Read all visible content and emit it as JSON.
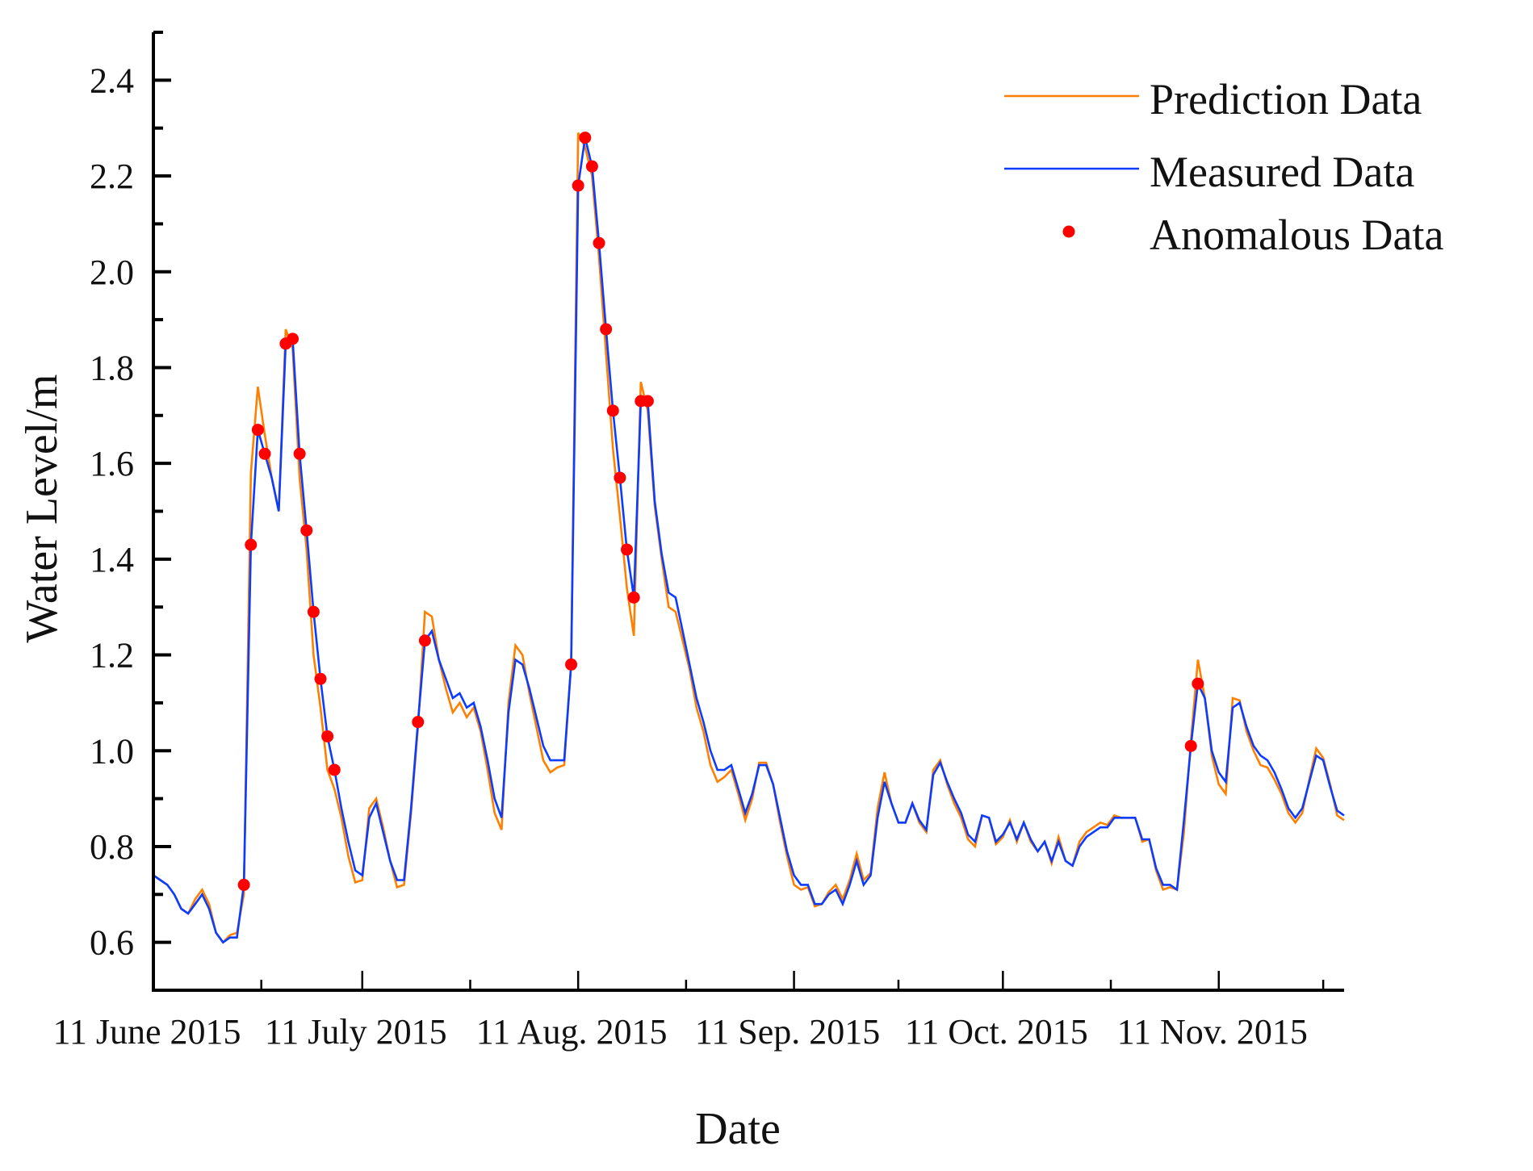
{
  "chart_data": {
    "type": "line",
    "title": "",
    "xlabel": "Date",
    "ylabel": "Water Level/m",
    "xlim_days": [
      0,
      171
    ],
    "ylim": [
      0.5,
      2.5
    ],
    "grid": false,
    "legend_placement": "top-right",
    "x_start_date": "11 June 2015",
    "x_ticks": [
      {
        "day": 0,
        "label": "11 June 2015"
      },
      {
        "day": 30,
        "label": "11 July 2015"
      },
      {
        "day": 61,
        "label": "11 Aug. 2015"
      },
      {
        "day": 92,
        "label": "11 Sep. 2015"
      },
      {
        "day": 122,
        "label": "11 Oct. 2015"
      },
      {
        "day": 153,
        "label": "11 Nov. 2015"
      }
    ],
    "x_minor_tick_days": [
      15.5,
      45.5,
      76.5,
      107,
      137.5,
      168
    ],
    "y_ticks": [
      {
        "value": 0.6,
        "label": "0.6"
      },
      {
        "value": 0.8,
        "label": "0.8"
      },
      {
        "value": 1.0,
        "label": "1.0"
      },
      {
        "value": 1.2,
        "label": "1.2"
      },
      {
        "value": 1.4,
        "label": "1.4"
      },
      {
        "value": 1.6,
        "label": "1.6"
      },
      {
        "value": 1.8,
        "label": "1.8"
      },
      {
        "value": 2.0,
        "label": "2.0"
      },
      {
        "value": 2.2,
        "label": "2.2"
      },
      {
        "value": 2.4,
        "label": "2.4"
      }
    ],
    "y_minor_ticks": [
      0.5,
      0.7,
      0.9,
      1.1,
      1.3,
      1.5,
      1.7,
      1.9,
      2.1,
      2.3,
      2.5
    ],
    "series": [
      {
        "name": "Prediction Data",
        "color": "#ff8000",
        "kind": "line",
        "values": [
          0.74,
          0.73,
          0.72,
          0.7,
          0.67,
          0.66,
          0.69,
          0.71,
          0.68,
          0.62,
          0.6,
          0.615,
          0.62,
          0.7,
          1.58,
          1.76,
          1.66,
          1.57,
          1.5,
          1.88,
          1.84,
          1.57,
          1.42,
          1.2,
          1.09,
          0.96,
          0.92,
          0.86,
          0.78,
          0.725,
          0.73,
          0.88,
          0.9,
          0.84,
          0.77,
          0.715,
          0.72,
          0.87,
          1.05,
          1.29,
          1.28,
          1.19,
          1.13,
          1.08,
          1.1,
          1.07,
          1.09,
          1.04,
          0.96,
          0.87,
          0.835,
          1.1,
          1.22,
          1.2,
          1.12,
          1.05,
          0.98,
          0.955,
          0.965,
          0.97,
          1.18,
          2.29,
          2.26,
          2.2,
          2.03,
          1.83,
          1.63,
          1.49,
          1.34,
          1.24,
          1.77,
          1.71,
          1.51,
          1.4,
          1.3,
          1.29,
          1.23,
          1.17,
          1.09,
          1.04,
          0.97,
          0.935,
          0.945,
          0.96,
          0.91,
          0.855,
          0.9,
          0.975,
          0.975,
          0.93,
          0.85,
          0.78,
          0.72,
          0.71,
          0.715,
          0.675,
          0.68,
          0.705,
          0.72,
          0.69,
          0.73,
          0.785,
          0.73,
          0.745,
          0.88,
          0.955,
          0.89,
          0.85,
          0.85,
          0.89,
          0.85,
          0.83,
          0.96,
          0.98,
          0.93,
          0.89,
          0.86,
          0.815,
          0.8,
          0.865,
          0.86,
          0.805,
          0.82,
          0.855,
          0.81,
          0.85,
          0.81,
          0.79,
          0.81,
          0.765,
          0.82,
          0.77,
          0.76,
          0.81,
          0.83,
          0.84,
          0.85,
          0.845,
          0.865,
          0.86,
          0.86,
          0.86,
          0.81,
          0.815,
          0.75,
          0.71,
          0.715,
          0.71,
          0.83,
          1.02,
          1.19,
          1.11,
          0.99,
          0.93,
          0.91,
          1.11,
          1.105,
          1.04,
          1.0,
          0.97,
          0.965,
          0.94,
          0.91,
          0.87,
          0.85,
          0.87,
          0.94,
          1.005,
          0.985,
          0.93,
          0.865,
          0.855
        ]
      },
      {
        "name": "Measured Data",
        "color": "#0b3cff",
        "kind": "line",
        "values": [
          0.74,
          0.73,
          0.72,
          0.7,
          0.67,
          0.66,
          0.68,
          0.7,
          0.67,
          0.62,
          0.6,
          0.61,
          0.61,
          0.72,
          1.43,
          1.67,
          1.62,
          1.57,
          1.5,
          1.85,
          1.86,
          1.62,
          1.46,
          1.29,
          1.15,
          1.03,
          0.96,
          0.88,
          0.81,
          0.75,
          0.74,
          0.86,
          0.89,
          0.83,
          0.77,
          0.73,
          0.73,
          0.88,
          1.06,
          1.23,
          1.25,
          1.19,
          1.15,
          1.11,
          1.12,
          1.09,
          1.1,
          1.05,
          0.98,
          0.9,
          0.86,
          1.08,
          1.19,
          1.18,
          1.13,
          1.07,
          1.01,
          0.98,
          0.98,
          0.98,
          1.18,
          2.18,
          2.28,
          2.22,
          2.06,
          1.88,
          1.71,
          1.57,
          1.42,
          1.32,
          1.73,
          1.73,
          1.52,
          1.41,
          1.33,
          1.32,
          1.25,
          1.18,
          1.11,
          1.06,
          1.0,
          0.96,
          0.96,
          0.97,
          0.92,
          0.87,
          0.91,
          0.97,
          0.97,
          0.93,
          0.86,
          0.79,
          0.74,
          0.72,
          0.72,
          0.68,
          0.68,
          0.7,
          0.71,
          0.68,
          0.72,
          0.77,
          0.72,
          0.74,
          0.86,
          0.935,
          0.89,
          0.85,
          0.85,
          0.89,
          0.855,
          0.835,
          0.95,
          0.975,
          0.935,
          0.9,
          0.87,
          0.825,
          0.81,
          0.865,
          0.86,
          0.81,
          0.825,
          0.85,
          0.815,
          0.85,
          0.815,
          0.79,
          0.81,
          0.77,
          0.81,
          0.77,
          0.76,
          0.8,
          0.82,
          0.83,
          0.84,
          0.84,
          0.86,
          0.86,
          0.86,
          0.86,
          0.815,
          0.815,
          0.755,
          0.72,
          0.72,
          0.71,
          0.855,
          1.01,
          1.14,
          1.11,
          1.0,
          0.955,
          0.935,
          1.09,
          1.1,
          1.05,
          1.01,
          0.99,
          0.98,
          0.955,
          0.92,
          0.88,
          0.86,
          0.88,
          0.935,
          0.99,
          0.98,
          0.925,
          0.875,
          0.865
        ]
      },
      {
        "name": "Anomalous Data",
        "color": "#ff0000",
        "kind": "scatter",
        "points": [
          [
            13,
            0.72
          ],
          [
            14,
            1.43
          ],
          [
            15,
            1.67
          ],
          [
            16,
            1.62
          ],
          [
            19,
            1.85
          ],
          [
            20,
            1.86
          ],
          [
            21,
            1.62
          ],
          [
            22,
            1.46
          ],
          [
            23,
            1.29
          ],
          [
            24,
            1.15
          ],
          [
            25,
            1.03
          ],
          [
            26,
            0.96
          ],
          [
            38,
            1.06
          ],
          [
            39,
            1.23
          ],
          [
            60,
            1.18
          ],
          [
            61,
            2.18
          ],
          [
            62,
            2.28
          ],
          [
            63,
            2.22
          ],
          [
            64,
            2.06
          ],
          [
            65,
            1.88
          ],
          [
            66,
            1.71
          ],
          [
            67,
            1.57
          ],
          [
            68,
            1.42
          ],
          [
            69,
            1.32
          ],
          [
            70,
            1.73
          ],
          [
            71,
            1.73
          ],
          [
            149,
            1.01
          ],
          [
            150,
            1.14
          ]
        ]
      }
    ]
  }
}
